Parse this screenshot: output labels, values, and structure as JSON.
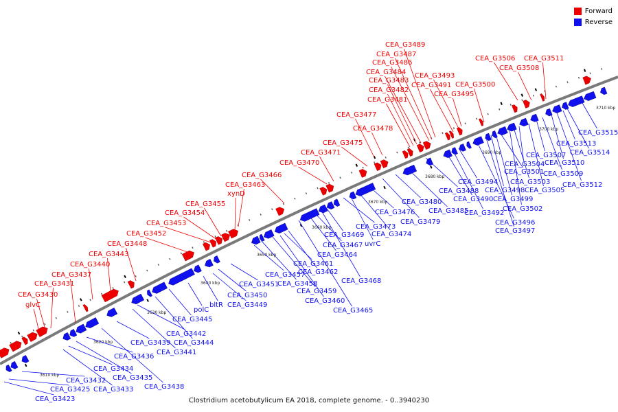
{
  "caption": "Clostridium acetobutylicum EA 2018, complete genome. - 0..3940230",
  "colors": {
    "forward": "#ee0000",
    "reverse": "#1010ee",
    "backbone": "#7a7a7a"
  },
  "legend": [
    {
      "label": "Forward",
      "color": "#ee0000"
    },
    {
      "label": "Reverse",
      "color": "#1010ee"
    }
  ],
  "scale_labels": [
    "3610 kbp",
    "3620 kbp",
    "3630 kbp",
    "3640 kbp",
    "3650 kbp",
    "3660 kbp",
    "3670 kbp",
    "3680 kbp",
    "3690 kbp",
    "3700 kbp",
    "3710 kbp"
  ],
  "forward_genes": [
    "glvC",
    "CEA_G3430",
    "CEA_G3431",
    "CEA_G3437",
    "CEA_G3440",
    "CEA_G3443",
    "CEA_G3448",
    "CEA_G3452",
    "CEA_G3453",
    "CEA_G3454",
    "CEA_G3455",
    "xynD",
    "CEA_G3463",
    "CEA_G3466",
    "CEA_G3470",
    "CEA_G3471",
    "CEA_G3475",
    "CEA_G3478",
    "CEA_G3477",
    "CEA_G3481",
    "CEA_G3482",
    "CEA_G3483",
    "CEA_G3484",
    "CEA_G3486",
    "CEA_G3487",
    "CEA_G3489",
    "CEA_G3491",
    "CEA_G3493",
    "CEA_G3495",
    "CEA_G3500",
    "CEA_G3506",
    "CEA_G3508",
    "CEA_G3511"
  ],
  "reverse_genes": [
    "CEA_G3423",
    "CEA_G3425",
    "CEA_G3432",
    "CEA_G3433",
    "CEA_G3434",
    "CEA_G3435",
    "CEA_G3436",
    "CEA_G3438",
    "CEA_G3439",
    "CEA_G3441",
    "CEA_G3442",
    "CEA_G3444",
    "CEA_G3445",
    "polC",
    "bltR",
    "CEA_G3449",
    "CEA_G3450",
    "CEA_G3451",
    "CEA_G3457",
    "CEA_G3458",
    "CEA_G3459",
    "CEA_G3460",
    "CEA_G3461",
    "CEA_G3462",
    "CEA_G3465",
    "CEA_G3464",
    "CEA_G3467",
    "CEA_G3468",
    "CEA_G3469",
    "CEA_G3473",
    "uvrC",
    "CEA_G3474",
    "CEA_G3476",
    "CEA_G3479",
    "CEA_G3480",
    "CEA_G3485",
    "CEA_G3488",
    "CEA_G3490",
    "CEA_G3492",
    "CEA_G3494",
    "CEA_G3496",
    "CEA_G3497",
    "CEA_G3498",
    "CEA_G3499",
    "CEA_G3501",
    "CEA_G3502",
    "CEA_G3503",
    "CEA_G3504",
    "CEA_G3505",
    "CEA_G3507",
    "CEA_G3509",
    "CEA_G3510",
    "CEA_G3512",
    "CEA_G3513",
    "CEA_G3514",
    "CEA_G3515"
  ]
}
